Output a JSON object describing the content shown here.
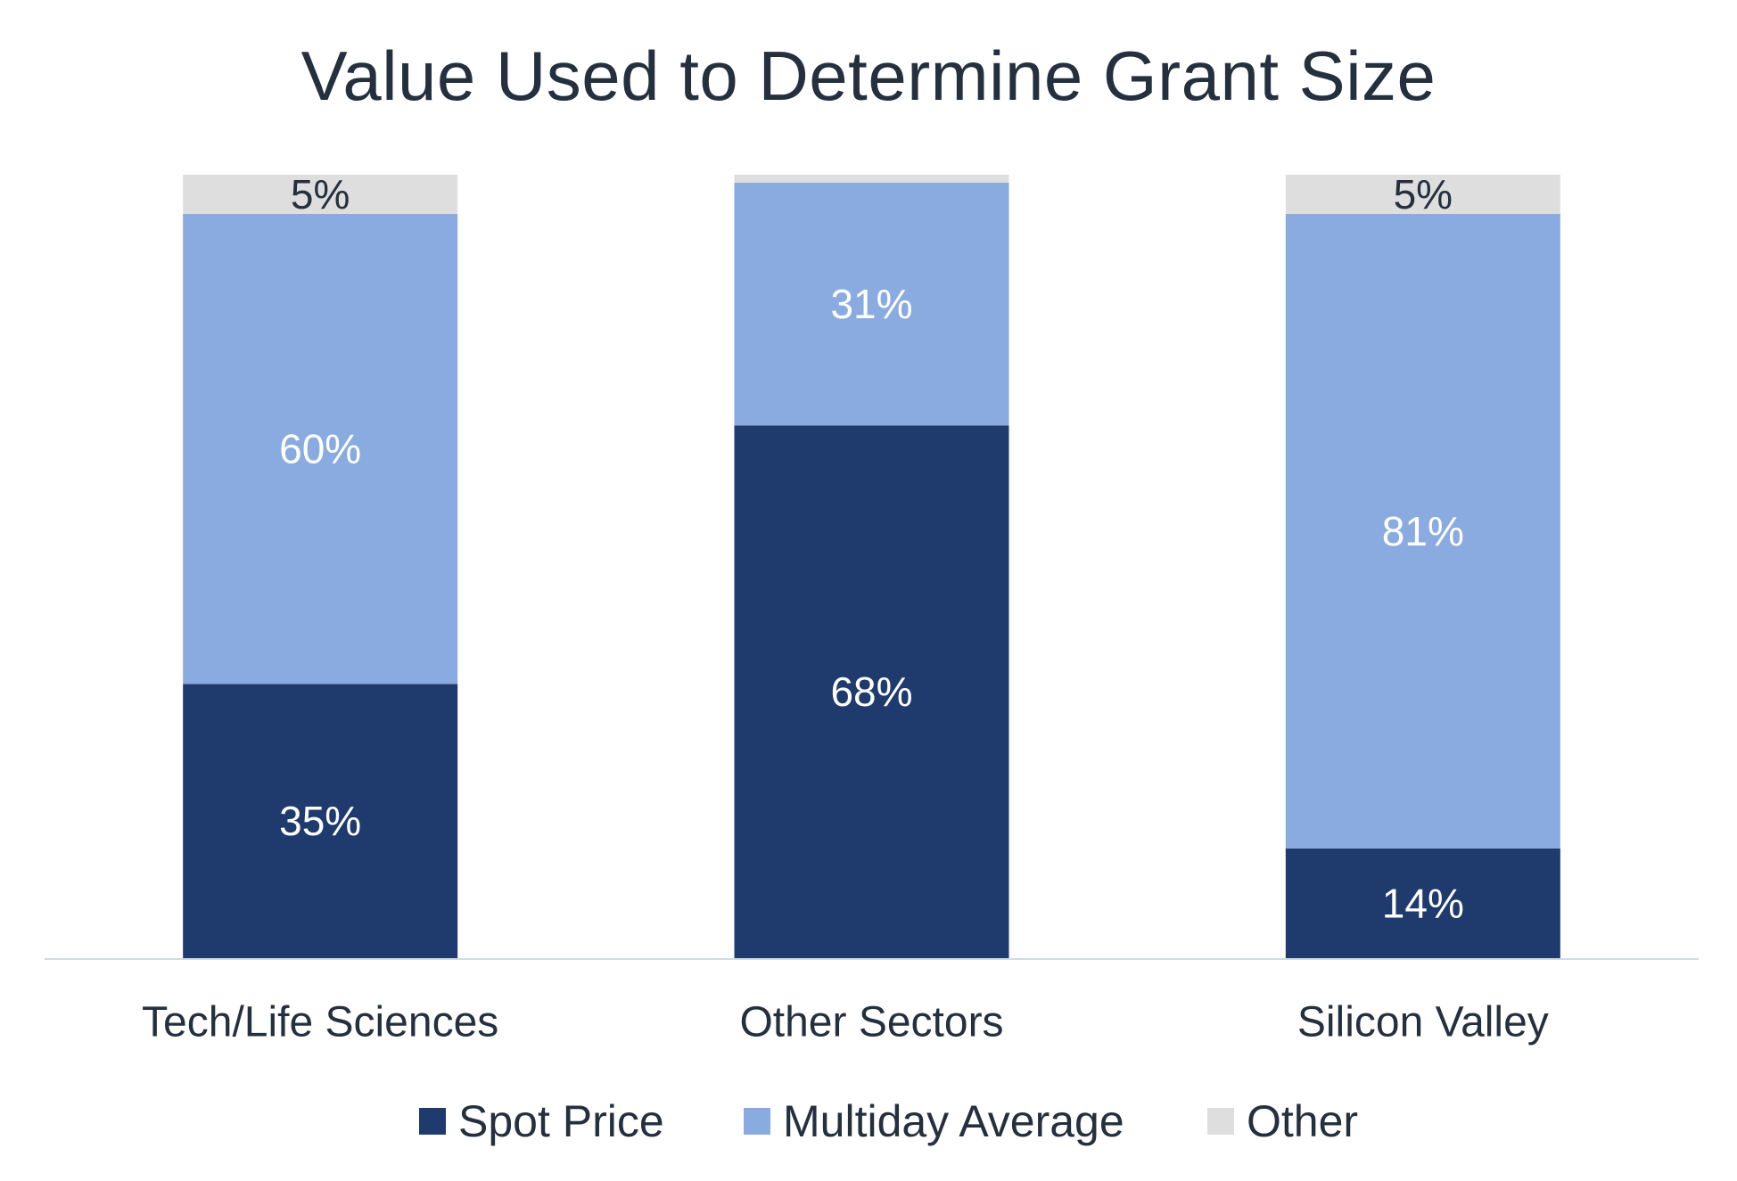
{
  "chart_data": {
    "type": "bar",
    "stacked": true,
    "title": "Value Used to Determine Grant Size",
    "categories": [
      "Tech/Life Sciences",
      "Other Sectors",
      "Silicon Valley"
    ],
    "series": [
      {
        "name": "Spot Price",
        "color": "#1f3b6e",
        "label_color": "#ffffff",
        "values": [
          35,
          68,
          14
        ],
        "labels": [
          "35%",
          "68%",
          "14%"
        ]
      },
      {
        "name": "Multiday Average",
        "color": "#8aabe0",
        "label_color": "#ffffff",
        "values": [
          60,
          31,
          81
        ],
        "labels": [
          "60%",
          "31%",
          "81%"
        ]
      },
      {
        "name": "Other",
        "color": "#dedede",
        "label_color": "#25303f",
        "values": [
          5,
          1,
          5
        ],
        "labels": [
          "5%",
          "",
          "5%"
        ]
      }
    ],
    "ylim": [
      0,
      100
    ],
    "grid": false,
    "legend_position": "bottom",
    "axis_line_color": "#cfdbe6"
  }
}
